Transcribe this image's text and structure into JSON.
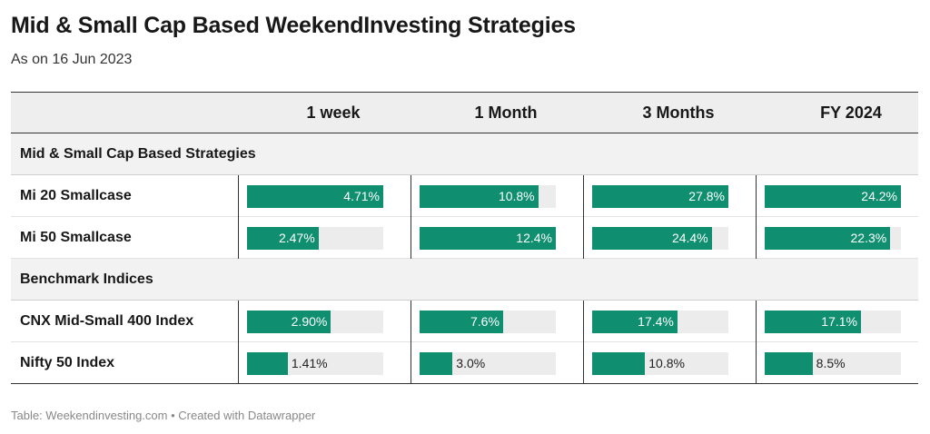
{
  "title": "Mid & Small Cap Based WeekendInvesting Strategies",
  "subtitle": "As on 16 Jun 2023",
  "footer": "Table: Weekendinvesting.com • Created with Datawrapper",
  "colors": {
    "bar": "#0f8f70",
    "track": "#ececec",
    "header_bg": "#eeeeee"
  },
  "chart_data": {
    "type": "table",
    "columns": [
      "1 week",
      "1 Month",
      "3 Months",
      "FY 2024"
    ],
    "column_ranges": [
      [
        0,
        4.71
      ],
      [
        0,
        12.4
      ],
      [
        0,
        27.8
      ],
      [
        0,
        24.2
      ]
    ],
    "groups": [
      {
        "label": "Mid & Small Cap Based Strategies",
        "rows": [
          {
            "name": "Mi 20 Smallcase",
            "values": [
              4.71,
              10.8,
              27.8,
              24.2
            ],
            "labels": [
              "4.71%",
              "10.8%",
              "27.8%",
              "24.2%"
            ]
          },
          {
            "name": "Mi 50 Smallcase",
            "values": [
              2.47,
              12.4,
              24.4,
              22.3
            ],
            "labels": [
              "2.47%",
              "12.4%",
              "24.4%",
              "22.3%"
            ]
          }
        ]
      },
      {
        "label": "Benchmark Indices",
        "rows": [
          {
            "name": "CNX Mid-Small 400 Index",
            "values": [
              2.9,
              7.6,
              17.4,
              17.1
            ],
            "labels": [
              "2.90%",
              "7.6%",
              "17.4%",
              "17.1%"
            ]
          },
          {
            "name": "Nifty 50 Index",
            "values": [
              1.41,
              3.0,
              10.8,
              8.5
            ],
            "labels": [
              "1.41%",
              "3.0%",
              "10.8%",
              "8.5%"
            ]
          }
        ]
      }
    ]
  }
}
